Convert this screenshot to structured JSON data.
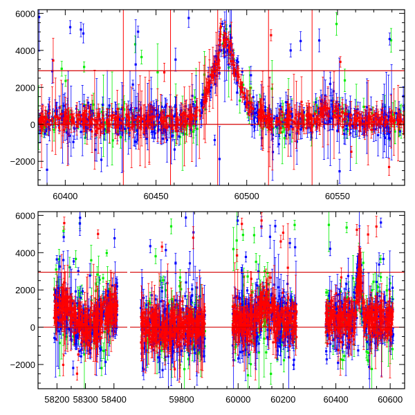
{
  "colors": {
    "blue": "#0000ff",
    "green": "#00ee00",
    "red": "#ff0000",
    "line": "#d40000",
    "frame": "#000000"
  },
  "chart_data": [
    {
      "type": "scatter",
      "title": "",
      "xlabel": "",
      "ylabel": "",
      "xlim": [
        60385,
        60587
      ],
      "ylim": [
        -3300,
        6200
      ],
      "x_ticks": [
        60400,
        60450,
        60500,
        60550
      ],
      "y_ticks": [
        -2000,
        0,
        2000,
        4000,
        6000
      ],
      "hlines": [
        0,
        2900
      ],
      "error_bars": true,
      "grid": false,
      "legend": "none",
      "series": [
        {
          "color": "#0000ff"
        },
        {
          "color": "#00ee00"
        },
        {
          "color": "#ff0000"
        }
      ]
    },
    {
      "type": "scatter",
      "title": "",
      "xlabel": "",
      "ylabel": "",
      "axis_break": true,
      "segments": [
        {
          "xlim": [
            58170,
            58420
          ],
          "x_ticks": [
            58200,
            58300,
            58400
          ]
        },
        {
          "xlim": [
            59620,
            59900
          ],
          "x_ticks": [
            59800
          ]
        },
        {
          "xlim": [
            59950,
            60270
          ],
          "x_ticks": [
            60000,
            60200
          ]
        },
        {
          "xlim": [
            60340,
            60620
          ],
          "x_ticks": [
            60400,
            60600
          ]
        }
      ],
      "ylim": [
        -3300,
        6200
      ],
      "y_ticks": [
        -2000,
        0,
        2000,
        4000,
        6000
      ],
      "hlines": [
        0,
        2950
      ],
      "error_bars": true,
      "grid": false,
      "legend": "none",
      "series": [
        {
          "color": "#0000ff"
        },
        {
          "color": "#00ee00"
        },
        {
          "color": "#ff0000"
        }
      ]
    }
  ]
}
